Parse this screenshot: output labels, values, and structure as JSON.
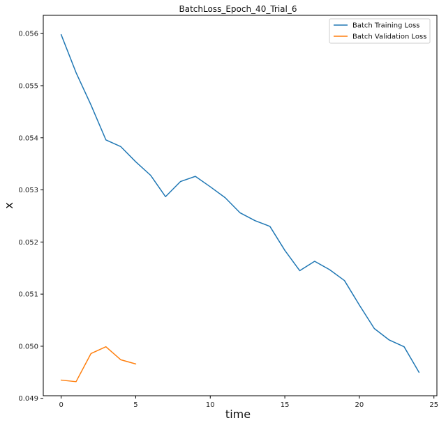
{
  "chart_data": {
    "type": "line",
    "title": "BatchLoss_Epoch_40_Trial_6",
    "xlabel": "time",
    "ylabel": "x",
    "xlim": [
      -1.2,
      25.2
    ],
    "ylim": [
      0.04905,
      0.05635
    ],
    "xticks": [
      0,
      5,
      10,
      15,
      20,
      25
    ],
    "yticks": [
      0.049,
      0.05,
      0.051,
      0.052,
      0.053,
      0.054,
      0.055,
      0.056
    ],
    "ytick_labels": [
      "0.049",
      "0.050",
      "0.051",
      "0.052",
      "0.053",
      "0.054",
      "0.055",
      "0.056"
    ],
    "legend_position": "top-right",
    "grid": false,
    "series": [
      {
        "name": "Batch Training Loss",
        "color": "#1f77b4",
        "x": [
          0,
          1,
          2,
          3,
          4,
          5,
          6,
          7,
          8,
          9,
          10,
          11,
          12,
          13,
          14,
          15,
          16,
          17,
          18,
          19,
          20,
          21,
          22,
          23,
          24
        ],
        "y": [
          0.05598,
          0.05525,
          0.05463,
          0.05396,
          0.05383,
          0.05354,
          0.05328,
          0.05287,
          0.05316,
          0.05326,
          0.05306,
          0.05285,
          0.05256,
          0.05241,
          0.0523,
          0.05184,
          0.05145,
          0.05163,
          0.05147,
          0.05126,
          0.05079,
          0.05034,
          0.05012,
          0.04999,
          0.0495
        ]
      },
      {
        "name": "Batch Validation Loss",
        "color": "#ff7f0e",
        "x": [
          0,
          1,
          2,
          3,
          4,
          5
        ],
        "y": [
          0.04935,
          0.04932,
          0.04986,
          0.04999,
          0.04974,
          0.04966
        ]
      }
    ]
  }
}
